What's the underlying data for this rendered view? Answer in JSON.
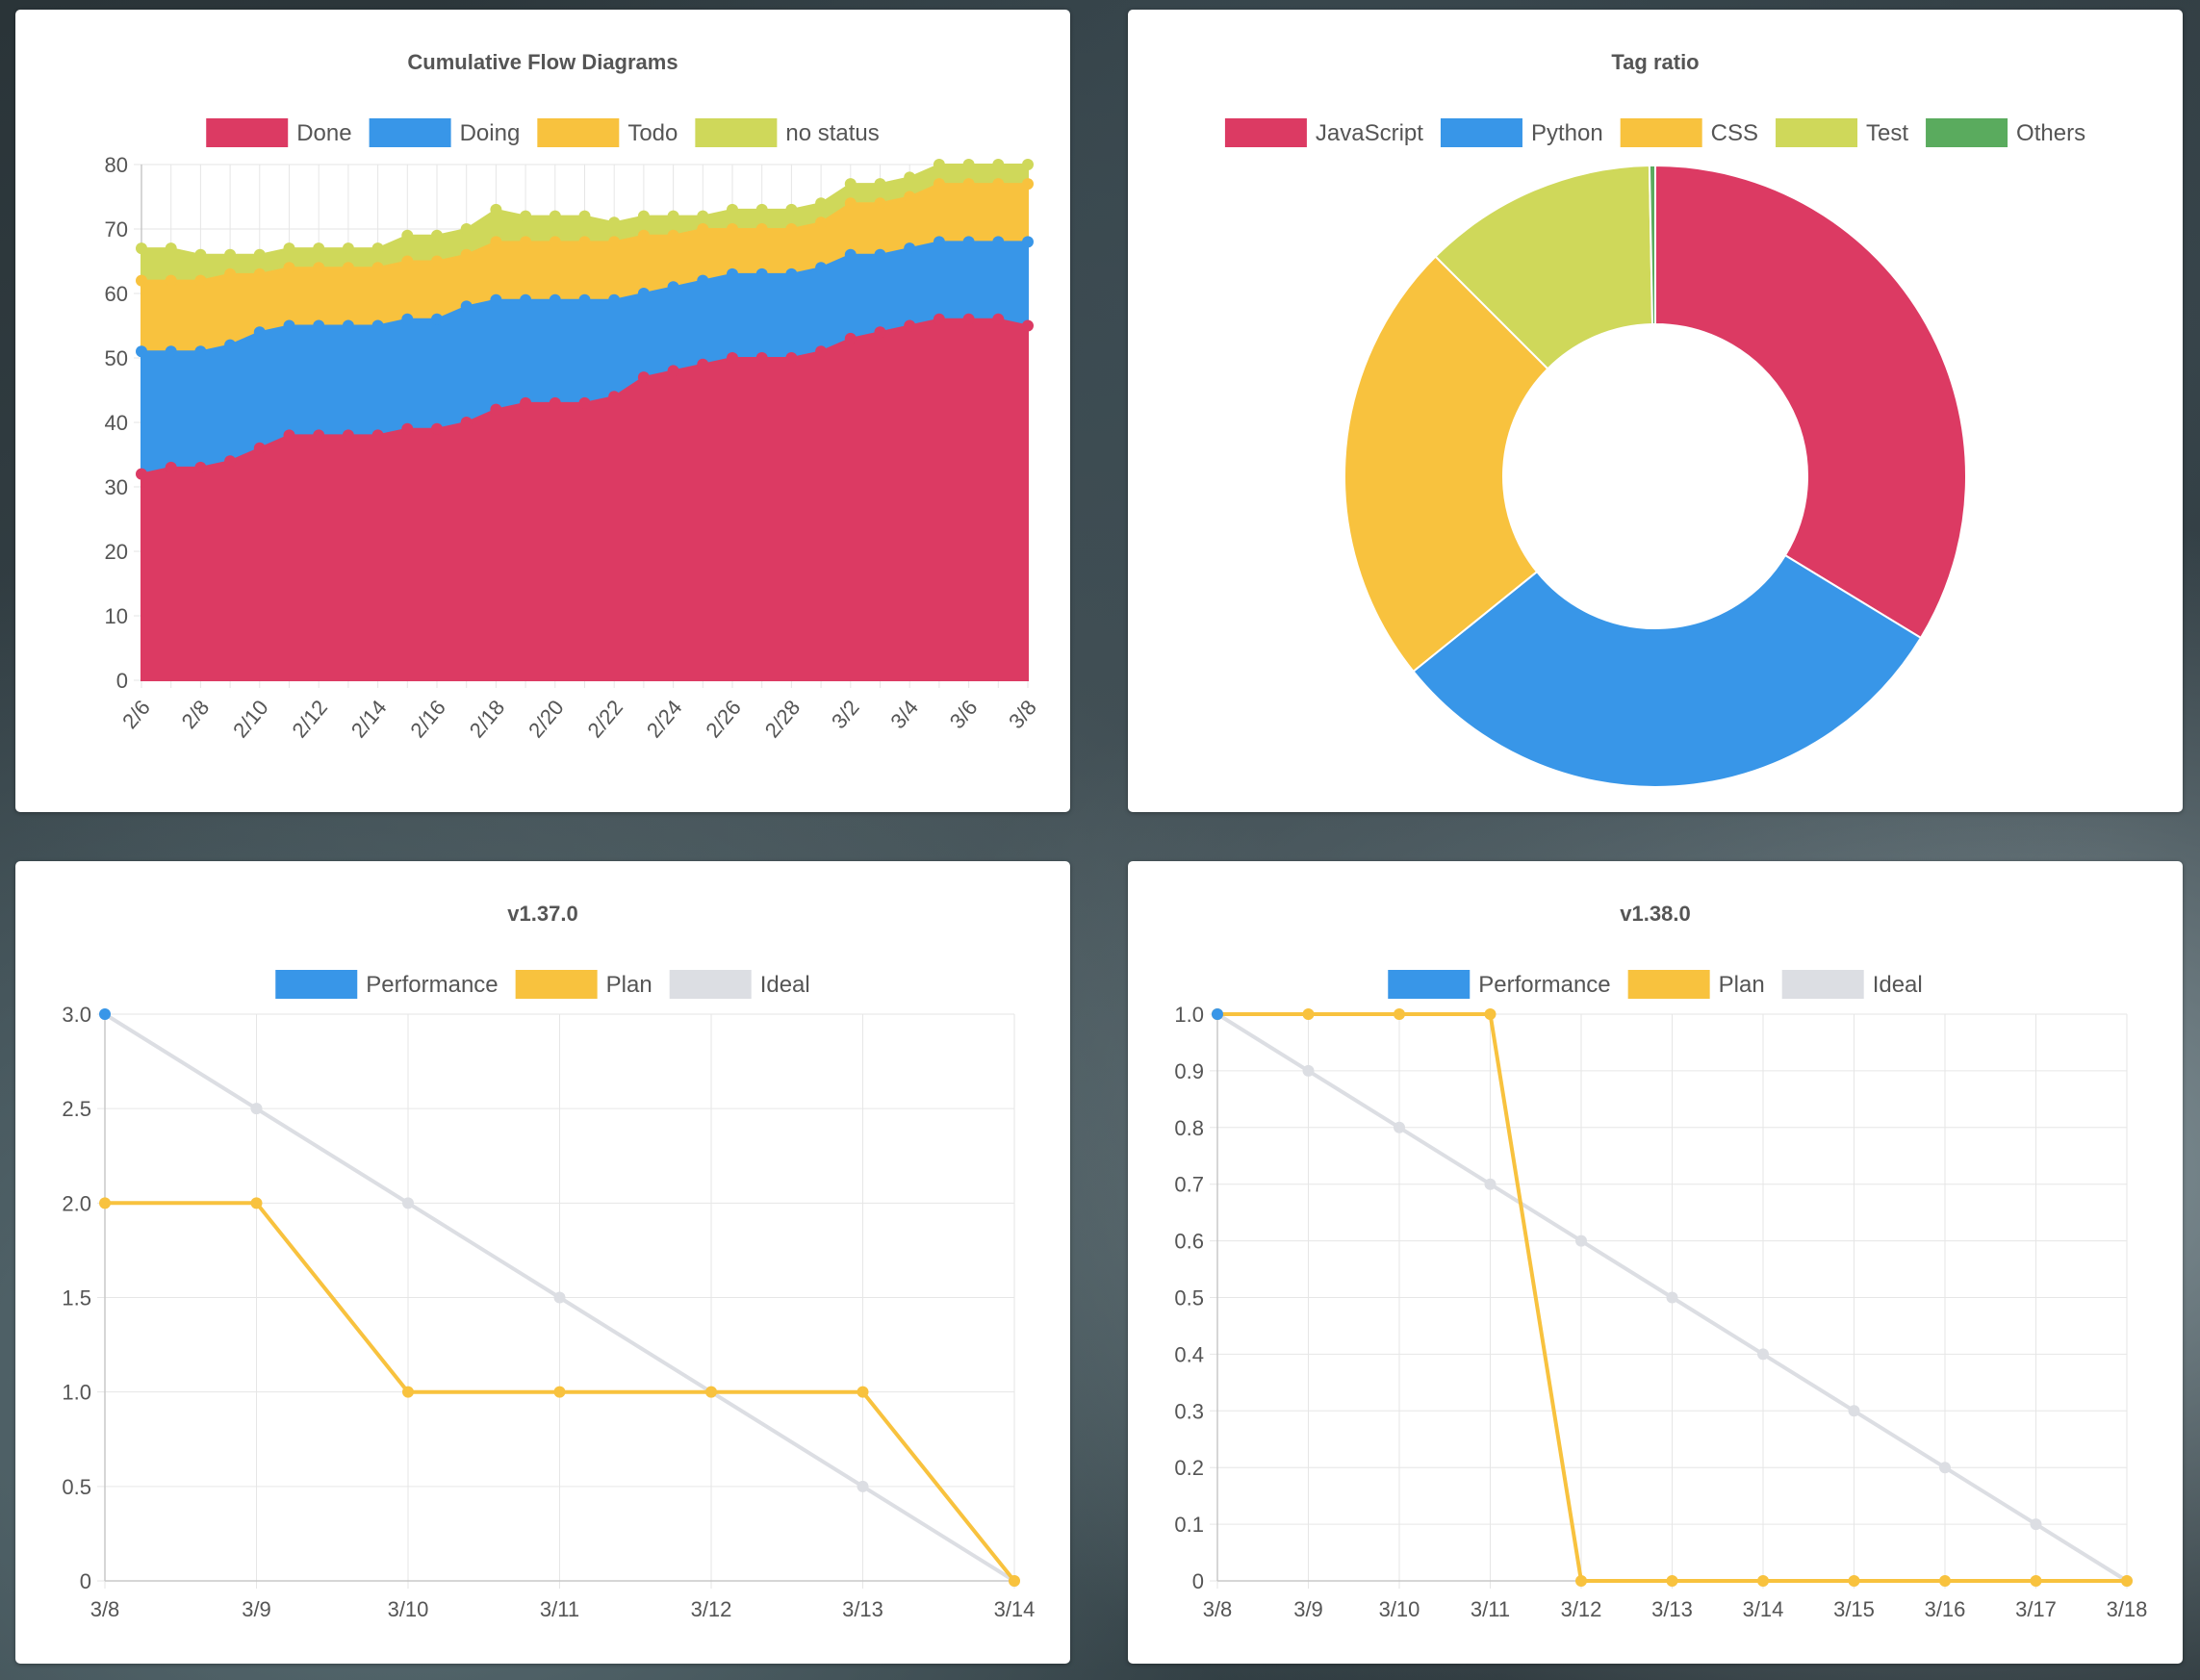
{
  "chart_data": [
    {
      "type": "area",
      "title": "Cumulative Flow Diagrams",
      "stacked": true,
      "legend_position": "top",
      "grid": true,
      "ylim": [
        0,
        80
      ],
      "yticks": [
        0,
        10,
        20,
        30,
        40,
        50,
        60,
        70,
        80
      ],
      "x": [
        "2/6",
        "2/7",
        "2/8",
        "2/9",
        "2/10",
        "2/11",
        "2/12",
        "2/13",
        "2/14",
        "2/15",
        "2/16",
        "2/17",
        "2/18",
        "2/19",
        "2/20",
        "2/21",
        "2/22",
        "2/23",
        "2/24",
        "2/25",
        "2/26",
        "2/27",
        "2/28",
        "3/1",
        "3/2",
        "3/3",
        "3/4",
        "3/5",
        "3/6",
        "3/7",
        "3/8"
      ],
      "xtick_labels": [
        "2/6",
        "2/8",
        "2/10",
        "2/12",
        "2/14",
        "2/16",
        "2/18",
        "2/20",
        "2/22",
        "2/24",
        "2/26",
        "2/28",
        "3/2",
        "3/4",
        "3/6",
        "3/8"
      ],
      "series": [
        {
          "name": "Done",
          "color": "#dc3a63",
          "values": [
            32,
            33,
            33,
            34,
            36,
            38,
            38,
            38,
            38,
            39,
            39,
            40,
            42,
            43,
            43,
            43,
            44,
            47,
            48,
            49,
            50,
            50,
            50,
            51,
            53,
            54,
            55,
            56,
            56,
            56,
            55
          ]
        },
        {
          "name": "Doing",
          "color": "#3896e8",
          "values": [
            51,
            51,
            51,
            52,
            54,
            55,
            55,
            55,
            55,
            56,
            56,
            58,
            59,
            59,
            59,
            59,
            59,
            60,
            61,
            62,
            63,
            63,
            63,
            64,
            66,
            66,
            67,
            68,
            68,
            68,
            68
          ]
        },
        {
          "name": "Todo",
          "color": "#f8c23e",
          "values": [
            62,
            62,
            62,
            63,
            63,
            64,
            64,
            64,
            64,
            65,
            65,
            66,
            68,
            68,
            68,
            68,
            68,
            69,
            69,
            70,
            70,
            70,
            70,
            71,
            74,
            74,
            75,
            77,
            77,
            77,
            77
          ]
        },
        {
          "name": "no status",
          "color": "#cfd85a",
          "values": [
            67,
            67,
            66,
            66,
            66,
            67,
            67,
            67,
            67,
            69,
            69,
            70,
            73,
            72,
            72,
            72,
            71,
            72,
            72,
            72,
            73,
            73,
            73,
            74,
            77,
            77,
            78,
            80,
            80,
            80,
            80
          ]
        }
      ]
    },
    {
      "type": "pie",
      "variant": "doughnut",
      "title": "Tag ratio",
      "legend_position": "top",
      "categories": [
        "JavaScript",
        "Python",
        "CSS",
        "Test",
        "Others"
      ],
      "colors": [
        "#dc3a63",
        "#3896e8",
        "#f8c23e",
        "#cfd85a",
        "#5aab5e"
      ],
      "values": [
        33.7,
        30.5,
        23.3,
        12.2,
        0.3
      ]
    },
    {
      "type": "line",
      "title": "v1.37.0",
      "legend_position": "top",
      "grid": true,
      "categories": [
        "3/8",
        "3/9",
        "3/10",
        "3/11",
        "3/12",
        "3/13",
        "3/14"
      ],
      "ylim": [
        0,
        3
      ],
      "yticks": [
        "0",
        "0.5",
        "1.0",
        "1.5",
        "2.0",
        "2.5",
        "3.0"
      ],
      "series": [
        {
          "name": "Performance",
          "color": "#3896e8",
          "values": [
            3,
            null,
            null,
            null,
            null,
            null,
            null
          ]
        },
        {
          "name": "Plan",
          "color": "#f8c23e",
          "values": [
            2,
            2,
            1,
            1,
            1,
            1,
            0
          ]
        },
        {
          "name": "Ideal",
          "color": "#dcdee3",
          "values": [
            3,
            2.5,
            2,
            1.5,
            1,
            0.5,
            0
          ]
        }
      ]
    },
    {
      "type": "line",
      "title": "v1.38.0",
      "legend_position": "top",
      "grid": true,
      "categories": [
        "3/8",
        "3/9",
        "3/10",
        "3/11",
        "3/12",
        "3/13",
        "3/14",
        "3/15",
        "3/16",
        "3/17",
        "3/18"
      ],
      "ylim": [
        0,
        1
      ],
      "yticks": [
        "0",
        "0.1",
        "0.2",
        "0.3",
        "0.4",
        "0.5",
        "0.6",
        "0.7",
        "0.8",
        "0.9",
        "1.0"
      ],
      "series": [
        {
          "name": "Performance",
          "color": "#3896e8",
          "values": [
            1,
            null,
            null,
            null,
            null,
            null,
            null,
            null,
            null,
            null,
            null
          ]
        },
        {
          "name": "Plan",
          "color": "#f8c23e",
          "values": [
            1,
            1,
            1,
            1,
            0,
            0,
            0,
            0,
            0,
            0,
            0
          ]
        },
        {
          "name": "Ideal",
          "color": "#dcdee3",
          "values": [
            1,
            0.9,
            0.8,
            0.7,
            0.6,
            0.5,
            0.4,
            0.3,
            0.2,
            0.1,
            0
          ]
        }
      ]
    }
  ]
}
